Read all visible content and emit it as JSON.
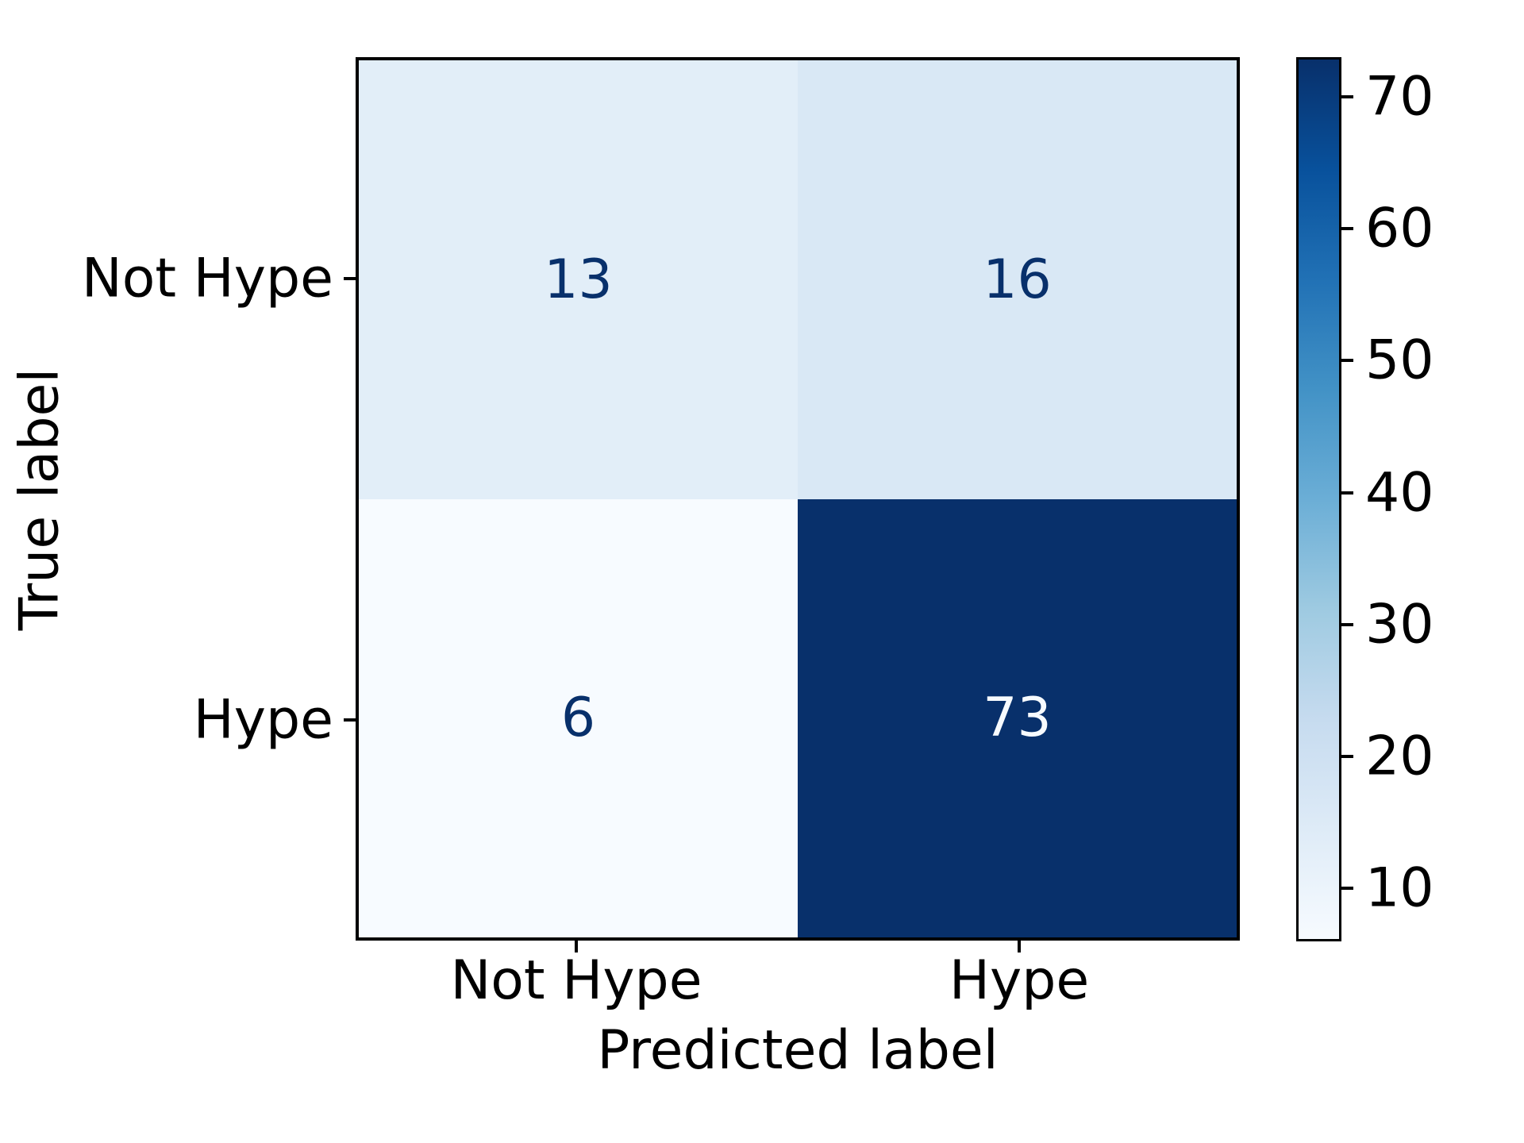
{
  "chart_data": {
    "type": "heatmap",
    "subtype": "confusion_matrix",
    "title": "",
    "xlabel": "Predicted label",
    "ylabel": "True label",
    "x_categories": [
      "Not Hype",
      "Hype"
    ],
    "y_categories": [
      "Not Hype",
      "Hype"
    ],
    "matrix": [
      [
        13,
        16
      ],
      [
        6,
        73
      ]
    ],
    "vmin": 6,
    "vmax": 73,
    "colormap": "Blues",
    "grid": false,
    "cells": [
      {
        "true_label": "Not Hype",
        "predicted_label": "Not Hype",
        "value": 13,
        "bg": "#e2eef8",
        "fg": "#08306b"
      },
      {
        "true_label": "Not Hype",
        "predicted_label": "Hype",
        "value": 16,
        "bg": "#d9e8f5",
        "fg": "#08306b"
      },
      {
        "true_label": "Hype",
        "predicted_label": "Not Hype",
        "value": 6,
        "bg": "#f7fbff",
        "fg": "#08306b"
      },
      {
        "true_label": "Hype",
        "predicted_label": "Hype",
        "value": 73,
        "bg": "#08306b",
        "fg": "#f7fbff"
      }
    ],
    "colorbar": {
      "position": "right",
      "ticks": [
        10,
        20,
        30,
        40,
        50,
        60,
        70
      ],
      "gradient_stops": [
        {
          "pos": 0.0,
          "color": "#f7fbff"
        },
        {
          "pos": 0.125,
          "color": "#deebf7"
        },
        {
          "pos": 0.25,
          "color": "#c6dbef"
        },
        {
          "pos": 0.375,
          "color": "#9ecae1"
        },
        {
          "pos": 0.5,
          "color": "#6baed6"
        },
        {
          "pos": 0.625,
          "color": "#4292c6"
        },
        {
          "pos": 0.75,
          "color": "#2171b5"
        },
        {
          "pos": 0.875,
          "color": "#08519c"
        },
        {
          "pos": 1.0,
          "color": "#08306b"
        }
      ]
    },
    "text_colors": {
      "dark_cell_text": "#f7fbff",
      "light_cell_text": "#08306b",
      "axis_text": "#000000"
    }
  }
}
